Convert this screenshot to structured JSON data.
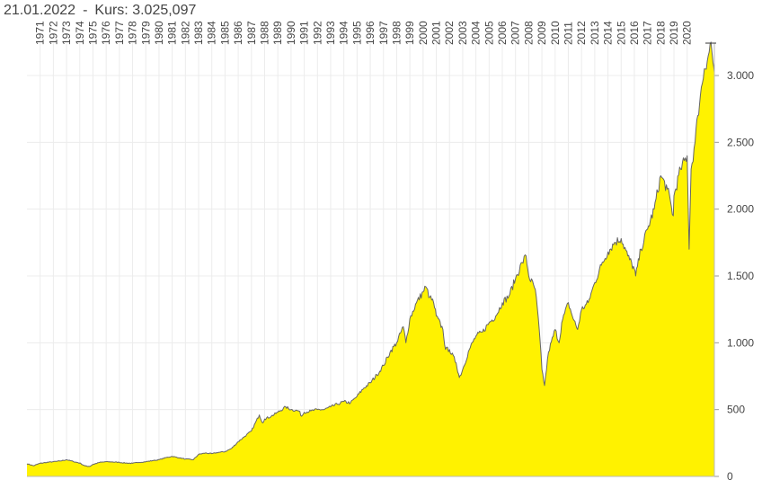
{
  "header": {
    "date": "21.01.2022",
    "separator": "-",
    "price_text": "Kurs: 3.025,097"
  },
  "chart_data": {
    "type": "area",
    "title": "",
    "xlabel": "",
    "ylabel": "",
    "xlim": [
      1970.0,
      2022.06
    ],
    "ylim": [
      0,
      3300
    ],
    "grid": true,
    "fill_color": "#FFF200",
    "line_color": "#666666",
    "x_tick_labels": [
      "1971",
      "1972",
      "1973",
      "1974",
      "1975",
      "1976",
      "1977",
      "1978",
      "1979",
      "1980",
      "1981",
      "1982",
      "1983",
      "1984",
      "1985",
      "1986",
      "1987",
      "1988",
      "1989",
      "1990",
      "1991",
      "1992",
      "1993",
      "1994",
      "1995",
      "1996",
      "1997",
      "1998",
      "1999",
      "2000",
      "2001",
      "2002",
      "2003",
      "2004",
      "2005",
      "2006",
      "2007",
      "2008",
      "2009",
      "2010",
      "2011",
      "2012",
      "2013",
      "2014",
      "2015",
      "2016",
      "2017",
      "2018",
      "2019",
      "2020"
    ],
    "y_ticks": [
      0,
      500,
      1000,
      1500,
      2000,
      2500,
      3000
    ],
    "y_tick_labels": [
      "0",
      "500",
      "1.000",
      "1.500",
      "2.000",
      "2.500",
      "3.000"
    ],
    "series": [
      {
        "x": [
          1970.0,
          1970.5,
          1971.0,
          1971.5,
          1972.0,
          1972.5,
          1973.0,
          1973.5,
          1974.0,
          1974.4,
          1974.75,
          1975.0,
          1975.5,
          1976.0,
          1976.5,
          1977.0,
          1977.5,
          1978.0,
          1978.5,
          1979.0,
          1979.5,
          1980.0,
          1980.5,
          1981.0,
          1981.5,
          1982.0,
          1982.6,
          1983.0,
          1983.5,
          1984.0,
          1984.5,
          1985.0,
          1985.5,
          1986.0,
          1986.5,
          1987.0,
          1987.6,
          1987.85,
          1988.0,
          1988.5,
          1989.0,
          1989.6,
          1990.0,
          1990.6,
          1990.8,
          1991.0,
          1991.5,
          1992.0,
          1992.5,
          1993.0,
          1993.5,
          1994.0,
          1994.5,
          1995.0,
          1995.5,
          1996.0,
          1996.5,
          1997.0,
          1997.5,
          1998.0,
          1998.5,
          1998.7,
          1999.0,
          1999.5,
          2000.0,
          2000.2,
          2000.5,
          2000.8,
          2001.0,
          2001.5,
          2001.7,
          2002.0,
          2002.5,
          2002.75,
          2003.0,
          2003.5,
          2004.0,
          2004.5,
          2005.0,
          2005.5,
          2006.0,
          2006.5,
          2007.0,
          2007.5,
          2007.8,
          2008.0,
          2008.5,
          2008.8,
          2009.0,
          2009.2,
          2009.5,
          2010.0,
          2010.3,
          2010.5,
          2011.0,
          2011.3,
          2011.7,
          2012.0,
          2012.5,
          2013.0,
          2013.5,
          2014.0,
          2014.5,
          2015.0,
          2015.5,
          2016.0,
          2016.1,
          2016.5,
          2017.0,
          2017.5,
          2018.0,
          2018.5,
          2018.95,
          2019.0,
          2019.5,
          2020.0,
          2020.15,
          2020.3,
          2020.6,
          2020.8,
          2021.0,
          2021.3,
          2021.6,
          2021.8,
          2021.95,
          2022.06
        ],
        "values": [
          95,
          80,
          98,
          105,
          110,
          115,
          125,
          112,
          100,
          78,
          75,
          90,
          105,
          110,
          108,
          105,
          100,
          98,
          105,
          110,
          118,
          125,
          140,
          150,
          140,
          130,
          125,
          165,
          175,
          170,
          180,
          185,
          210,
          260,
          300,
          340,
          460,
          400,
          430,
          450,
          480,
          520,
          500,
          490,
          450,
          480,
          490,
          500,
          500,
          520,
          540,
          560,
          550,
          600,
          660,
          700,
          760,
          830,
          930,
          1000,
          1120,
          1000,
          1180,
          1300,
          1380,
          1420,
          1340,
          1300,
          1200,
          1100,
          950,
          950,
          850,
          740,
          800,
          950,
          1050,
          1080,
          1150,
          1200,
          1300,
          1350,
          1480,
          1600,
          1650,
          1500,
          1400,
          1100,
          800,
          680,
          930,
          1100,
          1000,
          1150,
          1300,
          1200,
          1100,
          1250,
          1300,
          1450,
          1580,
          1680,
          1750,
          1780,
          1650,
          1550,
          1500,
          1700,
          1850,
          2000,
          2250,
          2150,
          1950,
          2100,
          2300,
          2400,
          1700,
          2300,
          2500,
          2700,
          2850,
          3050,
          3150,
          3250,
          3100,
          3025
        ]
      }
    ]
  }
}
